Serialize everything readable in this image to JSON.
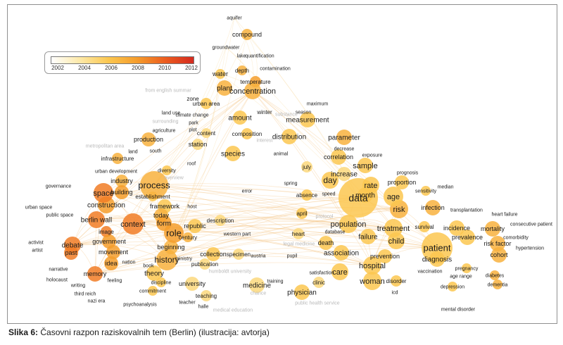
{
  "figure": {
    "caption_label": "Slika 6:",
    "caption_text": "Časovni razpon raziskovalnih tem (Berlin) (ilustracija: avtorja)"
  },
  "legend": {
    "ticks": [
      "2002",
      "2004",
      "2006",
      "2008",
      "2010",
      "2012"
    ],
    "colors": [
      "#ffffff",
      "#fde9a8",
      "#fbc750",
      "#f59d2c",
      "#ec5d1f",
      "#d42a1f"
    ]
  },
  "chart_data": {
    "type": "scatter",
    "description_source": "bibliometric term overlay map; color = average publication year",
    "color_scale": {
      "min": 2002,
      "max": 2012
    },
    "terms": [
      {
        "label": "aquifer",
        "year": 2009
      },
      {
        "label": "compound",
        "year": 2007
      },
      {
        "label": "groundwater",
        "year": 2008
      },
      {
        "label": "lake",
        "year": 2008
      },
      {
        "label": "quantification",
        "year": 2009
      },
      {
        "label": "contamination",
        "year": 2009
      },
      {
        "label": "water",
        "year": 2006
      },
      {
        "label": "depth",
        "year": 2007
      },
      {
        "label": "temperature",
        "year": 2008
      },
      {
        "label": "from english summar",
        "year": 2003
      },
      {
        "label": "plant",
        "year": 2007
      },
      {
        "label": "concentration",
        "year": 2007
      },
      {
        "label": "zone",
        "year": 2006
      },
      {
        "label": "urban area",
        "year": 2006
      },
      {
        "label": "maximum",
        "year": 2006
      },
      {
        "label": "winter",
        "year": 2005
      },
      {
        "label": "season",
        "year": 2005
      },
      {
        "label": "substance",
        "year": 2004
      },
      {
        "label": "land use",
        "year": 2006
      },
      {
        "label": "climate change",
        "year": 2008
      },
      {
        "label": "amount",
        "year": 2006
      },
      {
        "label": "measurement",
        "year": 2006
      },
      {
        "label": "surrounding",
        "year": 2004
      },
      {
        "label": "park",
        "year": 2005
      },
      {
        "label": "agriculture",
        "year": 2005
      },
      {
        "label": "plot",
        "year": 2005
      },
      {
        "label": "content",
        "year": 2005
      },
      {
        "label": "composition",
        "year": 2006
      },
      {
        "label": "interest",
        "year": 2004
      },
      {
        "label": "distribution",
        "year": 2006
      },
      {
        "label": "parameter",
        "year": 2007
      },
      {
        "label": "production",
        "year": 2007
      },
      {
        "label": "station",
        "year": 2005
      },
      {
        "label": "decrease",
        "year": 2005
      },
      {
        "label": "land",
        "year": 2006
      },
      {
        "label": "south",
        "year": 2005
      },
      {
        "label": "metropolitan area",
        "year": 2004
      },
      {
        "label": "species",
        "year": 2006
      },
      {
        "label": "animal",
        "year": 2005
      },
      {
        "label": "correlation",
        "year": 2006
      },
      {
        "label": "exposure",
        "year": 2006
      },
      {
        "label": "infrastructure",
        "year": 2007
      },
      {
        "label": "roof",
        "year": 2005
      },
      {
        "label": "july",
        "year": 2005
      },
      {
        "label": "increase",
        "year": 2005
      },
      {
        "label": "sample",
        "year": 2006
      },
      {
        "label": "prognosis",
        "year": 2005
      },
      {
        "label": "urban development",
        "year": 2007
      },
      {
        "label": "diversity",
        "year": 2006
      },
      {
        "label": "overview",
        "year": 2004
      },
      {
        "label": "day",
        "year": 2006
      },
      {
        "label": "rate",
        "year": 2006
      },
      {
        "label": "proportion",
        "year": 2006
      },
      {
        "label": "median",
        "year": 2005
      },
      {
        "label": "industry",
        "year": 2007
      },
      {
        "label": "process",
        "year": 2007
      },
      {
        "label": "error",
        "year": 2005
      },
      {
        "label": "spring",
        "year": 2005
      },
      {
        "label": "month",
        "year": 2006
      },
      {
        "label": "age",
        "year": 2006
      },
      {
        "label": "sensitivity",
        "year": 2006
      },
      {
        "label": "governance",
        "year": 2009
      },
      {
        "label": "space",
        "year": 2009
      },
      {
        "label": "building",
        "year": 2008
      },
      {
        "label": "establishment",
        "year": 2006
      },
      {
        "label": "absence",
        "year": 2006
      },
      {
        "label": "speed",
        "year": 2005
      },
      {
        "label": "data",
        "year": 2006
      },
      {
        "label": "infection",
        "year": 2007
      },
      {
        "label": "construction",
        "year": 2008
      },
      {
        "label": "framework",
        "year": 2006
      },
      {
        "label": "host",
        "year": 2005
      },
      {
        "label": "risk",
        "year": 2007
      },
      {
        "label": "transplantation",
        "year": 2006
      },
      {
        "label": "urban space",
        "year": 2009
      },
      {
        "label": "public space",
        "year": 2009
      },
      {
        "label": "berlin wall",
        "year": 2009
      },
      {
        "label": "today",
        "year": 2007
      },
      {
        "label": "description",
        "year": 2005
      },
      {
        "label": "april",
        "year": 2006
      },
      {
        "label": "protocol",
        "year": 2004
      },
      {
        "label": "heart failure",
        "year": 2007
      },
      {
        "label": "consecutive patient",
        "year": 2007
      },
      {
        "label": "context",
        "year": 2009
      },
      {
        "label": "form",
        "year": 2008
      },
      {
        "label": "republic",
        "year": 2006
      },
      {
        "label": "population",
        "year": 2006
      },
      {
        "label": "treatment",
        "year": 2006
      },
      {
        "label": "survival",
        "year": 2006
      },
      {
        "label": "incidence",
        "year": 2006
      },
      {
        "label": "mortality",
        "year": 2007
      },
      {
        "label": "image",
        "year": 2009
      },
      {
        "label": "role",
        "year": 2008
      },
      {
        "label": "western part",
        "year": 2005
      },
      {
        "label": "heart",
        "year": 2005
      },
      {
        "label": "database",
        "year": 2005
      },
      {
        "label": "failure",
        "year": 2006
      },
      {
        "label": "prevalence",
        "year": 2006
      },
      {
        "label": "comorbidity",
        "year": 2006
      },
      {
        "label": "activist",
        "year": 2010
      },
      {
        "label": "debate",
        "year": 2009
      },
      {
        "label": "government",
        "year": 2008
      },
      {
        "label": "century",
        "year": 2007
      },
      {
        "label": "child",
        "year": 2006
      },
      {
        "label": "risk factor",
        "year": 2007
      },
      {
        "label": "artist",
        "year": 2010
      },
      {
        "label": "past",
        "year": 2009
      },
      {
        "label": "movement",
        "year": 2008
      },
      {
        "label": "beginning",
        "year": 2007
      },
      {
        "label": "legal medicine",
        "year": 2004
      },
      {
        "label": "death",
        "year": 2006
      },
      {
        "label": "patient",
        "year": 2006
      },
      {
        "label": "cohort",
        "year": 2007
      },
      {
        "label": "hypertension",
        "year": 2007
      },
      {
        "label": "nation",
        "year": 2008
      },
      {
        "label": "idea",
        "year": 2008
      },
      {
        "label": "history",
        "year": 2007
      },
      {
        "label": "ministry",
        "year": 2005
      },
      {
        "label": "collection",
        "year": 2006
      },
      {
        "label": "specimen",
        "year": 2005
      },
      {
        "label": "austria",
        "year": 2005
      },
      {
        "label": "pupil",
        "year": 2005
      },
      {
        "label": "association",
        "year": 2006
      },
      {
        "label": "prevention",
        "year": 2006
      },
      {
        "label": "diagnosis",
        "year": 2006
      },
      {
        "label": "pregnancy",
        "year": 2006
      },
      {
        "label": "narrative",
        "year": 2009
      },
      {
        "label": "memory",
        "year": 2009
      },
      {
        "label": "book",
        "year": 2006
      },
      {
        "label": "publication",
        "year": 2005
      },
      {
        "label": "humboldt university",
        "year": 2004
      },
      {
        "label": "hospital",
        "year": 2006
      },
      {
        "label": "vaccination",
        "year": 2006
      },
      {
        "label": "holocaust",
        "year": 2010
      },
      {
        "label": "feeling",
        "year": 2008
      },
      {
        "label": "theory",
        "year": 2006
      },
      {
        "label": "care",
        "year": 2006
      },
      {
        "label": "satisfaction",
        "year": 2005
      },
      {
        "label": "age range",
        "year": 2006
      },
      {
        "label": "diabetes",
        "year": 2007
      },
      {
        "label": "writing",
        "year": 2008
      },
      {
        "label": "discipline",
        "year": 2006
      },
      {
        "label": "university",
        "year": 2005
      },
      {
        "label": "training",
        "year": 2005
      },
      {
        "label": "woman",
        "year": 2006
      },
      {
        "label": "disorder",
        "year": 2006
      },
      {
        "label": "depression",
        "year": 2006
      },
      {
        "label": "dementia",
        "year": 2007
      },
      {
        "label": "third reich",
        "year": 2009
      },
      {
        "label": "commitment",
        "year": 2006
      },
      {
        "label": "medicine",
        "year": 2005
      },
      {
        "label": "clinic",
        "year": 2005
      },
      {
        "label": "teaching",
        "year": 2005
      },
      {
        "label": "chance",
        "year": 2004
      },
      {
        "label": "physician",
        "year": 2006
      },
      {
        "label": "icd",
        "year": 2006
      },
      {
        "label": "nazi era",
        "year": 2009
      },
      {
        "label": "teacher",
        "year": 2005
      },
      {
        "label": "public health service",
        "year": 2004
      },
      {
        "label": "psychoanalysis",
        "year": 2006
      },
      {
        "label": "halle",
        "year": 2005
      },
      {
        "label": "medical education",
        "year": 2004
      },
      {
        "label": "mental disorder",
        "year": 2006
      }
    ]
  }
}
